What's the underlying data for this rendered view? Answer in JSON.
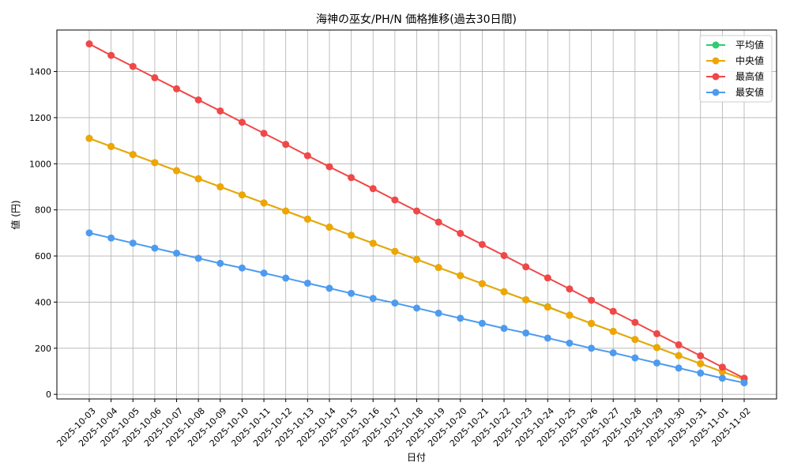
{
  "chart_data": {
    "type": "line",
    "title": "海神の巫女/PH/N 価格推移(過去30日間)",
    "xlabel": "日付",
    "ylabel": "値 (円)",
    "ylim": [
      -20,
      1580
    ],
    "yticks": [
      0,
      200,
      400,
      600,
      800,
      1000,
      1200,
      1400
    ],
    "grid": true,
    "legend_position": "top-right",
    "categories": [
      "2025-10-03",
      "2025-10-04",
      "2025-10-05",
      "2025-10-06",
      "2025-10-07",
      "2025-10-08",
      "2025-10-09",
      "2025-10-10",
      "2025-10-11",
      "2025-10-12",
      "2025-10-13",
      "2025-10-14",
      "2025-10-15",
      "2025-10-16",
      "2025-10-17",
      "2025-10-18",
      "2025-10-19",
      "2025-10-20",
      "2025-10-21",
      "2025-10-22",
      "2025-10-23",
      "2025-10-24",
      "2025-10-25",
      "2025-10-26",
      "2025-10-27",
      "2025-10-28",
      "2025-10-29",
      "2025-10-30",
      "2025-10-31",
      "2025-11-01",
      "2025-11-02"
    ],
    "series": [
      {
        "name": "平均値",
        "color": "#2ecc71",
        "values": [
          1110,
          1075,
          1040,
          1005,
          970,
          935,
          900,
          865,
          830,
          795,
          760,
          725,
          690,
          655,
          620,
          585,
          550,
          515,
          480,
          445,
          410,
          380,
          343,
          307,
          273,
          238,
          203,
          168,
          133,
          98,
          65
        ]
      },
      {
        "name": "中央値",
        "color": "#f0a500",
        "values": [
          1110,
          1075,
          1040,
          1005,
          970,
          935,
          900,
          865,
          830,
          795,
          760,
          725,
          690,
          655,
          620,
          585,
          550,
          515,
          480,
          445,
          410,
          378,
          343,
          308,
          273,
          238,
          203,
          168,
          133,
          98,
          65
        ]
      },
      {
        "name": "最高値",
        "color": "#f04848",
        "values": [
          1520,
          1470,
          1422,
          1373,
          1325,
          1277,
          1229,
          1180,
          1132,
          1084,
          1035,
          987,
          940,
          892,
          843,
          795,
          747,
          698,
          650,
          602,
          553,
          505,
          457,
          408,
          360,
          312,
          263,
          215,
          167,
          118,
          70
        ]
      },
      {
        "name": "最安値",
        "color": "#4d9bf0",
        "values": [
          700,
          678,
          656,
          634,
          612,
          590,
          568,
          548,
          526,
          504,
          482,
          460,
          438,
          416,
          396,
          374,
          352,
          330,
          308,
          286,
          266,
          244,
          222,
          200,
          180,
          158,
          136,
          114,
          92,
          70,
          50
        ]
      }
    ]
  }
}
